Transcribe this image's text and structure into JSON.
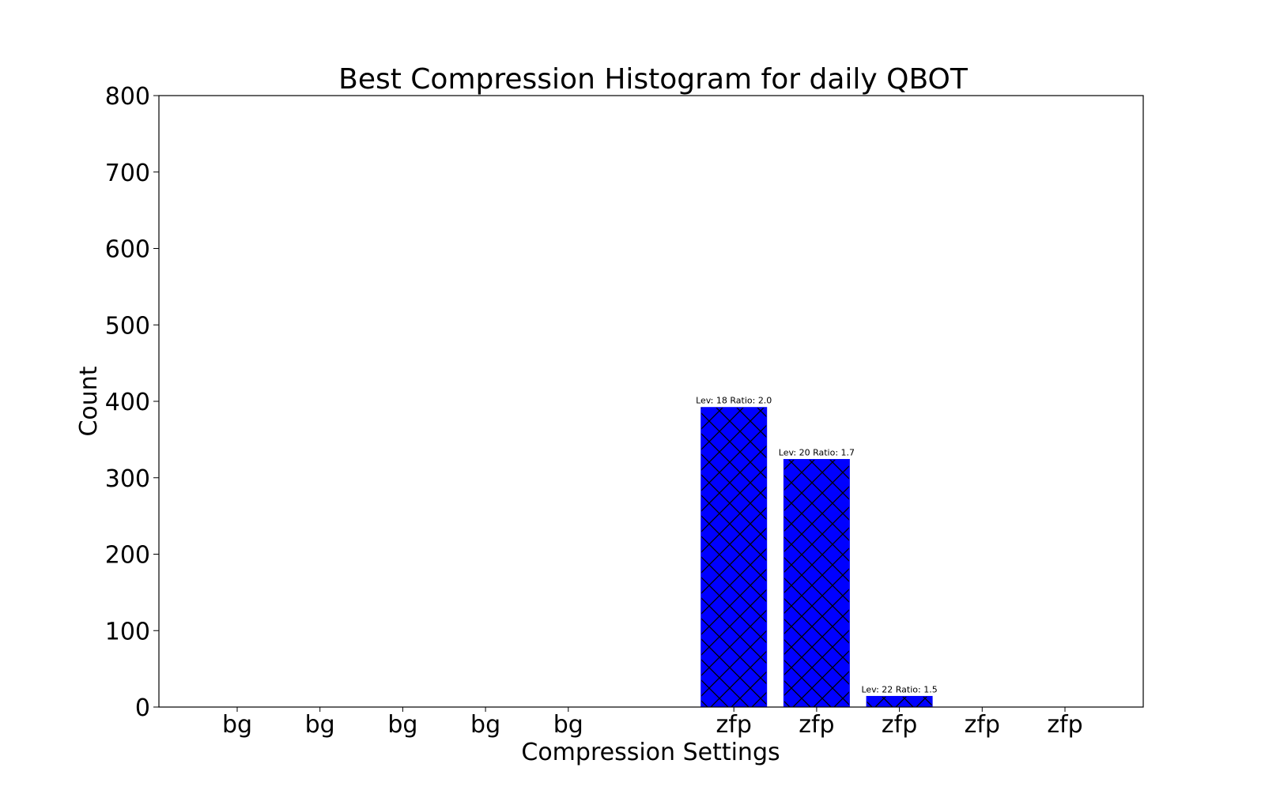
{
  "chart_data": {
    "type": "bar",
    "title": "Best Compression Histogram for daily QBOT",
    "xlabel": "Compression Settings",
    "ylabel": "Count",
    "ylim": [
      0,
      800
    ],
    "yticks": [
      0,
      100,
      200,
      300,
      400,
      500,
      600,
      700,
      800
    ],
    "categories": [
      "bg",
      "bg",
      "bg",
      "bg",
      "bg",
      "",
      "zfp",
      "zfp",
      "zfp",
      "zfp",
      "zfp"
    ],
    "values": [
      0,
      0,
      0,
      0,
      0,
      0,
      392,
      324,
      14,
      0,
      0
    ],
    "bar_labels": [
      "",
      "",
      "",
      "",
      "",
      "",
      "Lev: 18 Ratio: 2.0",
      "Lev: 20 Ratio: 1.7",
      "Lev: 22 Ratio: 1.5",
      "",
      ""
    ],
    "bar_color": "#0000ff",
    "hatch": "cross-diagonal",
    "grid": false,
    "legend": "none"
  }
}
